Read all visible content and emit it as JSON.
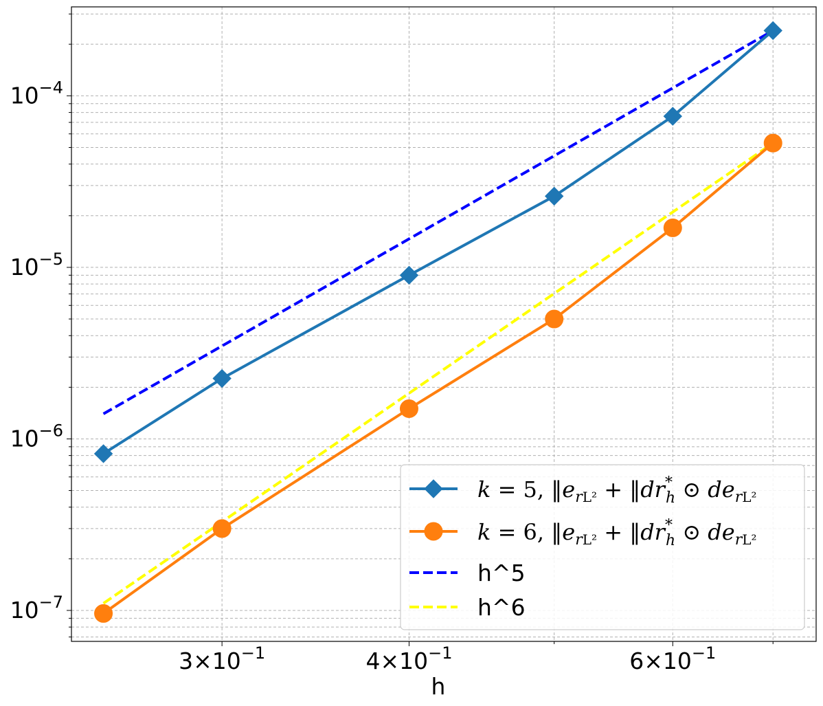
{
  "chart_data": {
    "type": "line",
    "xlabel": "h",
    "ylabel": "",
    "xscale": "log",
    "yscale": "log",
    "xlim": [
      0.238,
      0.748
    ],
    "ylim": [
      6.6e-08,
      0.00033
    ],
    "grid": true,
    "legend_position": "lower right",
    "x_ticks": [
      {
        "value": 0.3,
        "mantissa": "3",
        "exponent": "−1"
      },
      {
        "value": 0.4,
        "mantissa": "4",
        "exponent": "−1"
      },
      {
        "value": 0.6,
        "mantissa": "6",
        "exponent": "−1"
      }
    ],
    "y_ticks": [
      {
        "value": 1e-07,
        "exponent": "−7"
      },
      {
        "value": 1e-06,
        "exponent": "−6"
      },
      {
        "value": 1e-05,
        "exponent": "−5"
      },
      {
        "value": 0.0001,
        "exponent": "−4"
      }
    ],
    "series": [
      {
        "name": "k = 5, ‖e_r‖_{L²} + ‖dr_h^* ⊙ de_r‖_{L²}",
        "color": "#1f77b4",
        "marker": "diamond",
        "line_style": "solid",
        "x": [
          0.25,
          0.3,
          0.4,
          0.5,
          0.6,
          0.7
        ],
        "y": [
          8.2e-07,
          2.25e-06,
          9e-06,
          2.6e-05,
          7.6e-05,
          0.00024
        ]
      },
      {
        "name": "k = 6, ‖e_r‖_{L²} + ‖dr_h^* ⊙ de_r‖_{L²}",
        "color": "#ff7f0e",
        "marker": "circle",
        "line_style": "solid",
        "x": [
          0.25,
          0.3,
          0.4,
          0.5,
          0.6,
          0.7
        ],
        "y": [
          9.6e-08,
          3e-07,
          1.5e-06,
          5e-06,
          1.7e-05,
          5.3e-05
        ]
      },
      {
        "name": "h^5",
        "color": "#0000ff",
        "marker": "none",
        "line_style": "dashed",
        "x": [
          0.25,
          0.7
        ],
        "y": [
          1.4e-06,
          0.00024
        ]
      },
      {
        "name": "h^6",
        "color": "#ffff00",
        "marker": "none",
        "line_style": "dashed",
        "x": [
          0.25,
          0.7
        ],
        "y": [
          1.1e-07,
          5.3e-05
        ]
      }
    ],
    "legend": {
      "entries": [
        {
          "k_text": "k",
          "eq_text": " = ",
          "k_value": "5",
          "norm_text": "‖e",
          "sub_r": "r",
          "l2": "L²",
          "plus": " + ‖dr",
          "h_sub": "h",
          "star": "*",
          "odot": " ⊙ de",
          "sub_r2": "r",
          "l2b": "L²"
        },
        {
          "k_text": "k",
          "eq_text": " = ",
          "k_value": "6",
          "norm_text": "‖e",
          "sub_r": "r",
          "l2": "L²",
          "plus": " + ‖dr",
          "h_sub": "h",
          "star": "*",
          "odot": " ⊙ de",
          "sub_r2": "r",
          "l2b": "L²"
        },
        {
          "label": "h^5"
        },
        {
          "label": "h^6"
        }
      ]
    }
  }
}
